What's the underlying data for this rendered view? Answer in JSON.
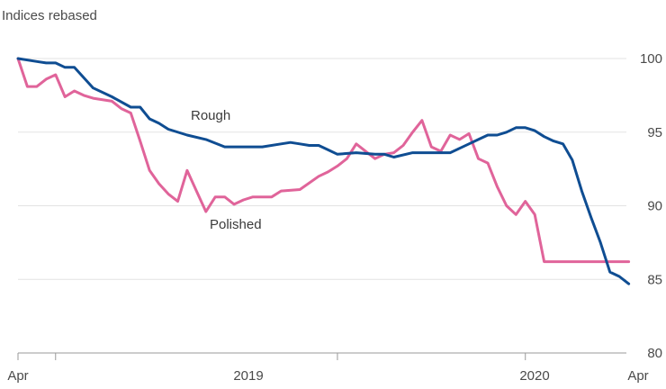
{
  "chart_data": {
    "type": "line",
    "ylabel": "Indices rebased",
    "ylim": [
      80,
      100
    ],
    "yticks": [
      80,
      85,
      90,
      95,
      100
    ],
    "grid": true,
    "x_tick_labels": [
      "Apr",
      "2019",
      "2020",
      "Apr"
    ],
    "x_minor_ticks": [
      2,
      17,
      27
    ],
    "x_range": [
      0,
      33
    ],
    "series": [
      {
        "name": "Rough",
        "color": "#0f4d92",
        "x": [
          0,
          1,
          1.5,
          2,
          2.5,
          3,
          4,
          5,
          6,
          6.5,
          7,
          7.5,
          8,
          9,
          10,
          11,
          12,
          13,
          14,
          14.5,
          15,
          15.5,
          16,
          16.5,
          17,
          18,
          19,
          19.5,
          20,
          21,
          22,
          23,
          23.5,
          24,
          24.5,
          25,
          25.5,
          26,
          26.5,
          27,
          27.5,
          28,
          28.5,
          29,
          29.5,
          30,
          30.5,
          31,
          31.5,
          32,
          32.5
        ],
        "values": [
          100,
          99.8,
          99.7,
          99.7,
          99.4,
          99.4,
          98,
          97.4,
          96.7,
          96.7,
          95.9,
          95.6,
          95.2,
          94.8,
          94.5,
          94,
          94,
          94,
          94.2,
          94.3,
          94.2,
          94.1,
          94.1,
          93.8,
          93.5,
          93.6,
          93.5,
          93.5,
          93.3,
          93.6,
          93.6,
          93.6,
          93.9,
          94.2,
          94.5,
          94.8,
          94.8,
          95,
          95.3,
          95.3,
          95.1,
          94.7,
          94.4,
          94.2,
          93.1,
          91,
          89.2,
          87.5,
          85.5,
          85.2,
          84.7
        ]
      },
      {
        "name": "Polished",
        "color": "#e0649a",
        "x": [
          0,
          0.5,
          1,
          1.5,
          2,
          2.5,
          3,
          3.5,
          4,
          5,
          5.5,
          6,
          6.5,
          7,
          7.5,
          8,
          8.5,
          9,
          9.5,
          10,
          10.5,
          11,
          11.5,
          12,
          12.5,
          13,
          13.5,
          14,
          15,
          16,
          16.5,
          17,
          17.5,
          18,
          19,
          19.5,
          20,
          20.5,
          21,
          21.5,
          22,
          22.5,
          23,
          23.5,
          24,
          24.5,
          25,
          25.5,
          26,
          26.5,
          27,
          27.5,
          28,
          28.5,
          29,
          29.5,
          30,
          30.5,
          31,
          31.5,
          32,
          32.5
        ],
        "values": [
          100,
          98.1,
          98.1,
          98.6,
          98.9,
          97.4,
          97.8,
          97.5,
          97.3,
          97.1,
          96.6,
          96.3,
          94.4,
          92.4,
          91.5,
          90.8,
          90.3,
          92.4,
          91,
          89.6,
          90.6,
          90.6,
          90.1,
          90.4,
          90.6,
          90.6,
          90.6,
          91,
          91.1,
          92,
          92.3,
          92.7,
          93.2,
          94.2,
          93.2,
          93.5,
          93.6,
          94.1,
          95,
          95.8,
          94,
          93.7,
          94.8,
          94.5,
          94.9,
          93.2,
          92.9,
          91.3,
          90,
          89.4,
          90.3,
          89.4,
          86.2,
          86.2,
          86.2,
          86.2,
          86.2,
          86.2,
          86.2,
          86.2,
          86.2,
          86.2
        ]
      }
    ],
    "annotations": [
      {
        "text": "Rough",
        "series": "Rough"
      },
      {
        "text": "Polished",
        "series": "Polished"
      }
    ]
  }
}
